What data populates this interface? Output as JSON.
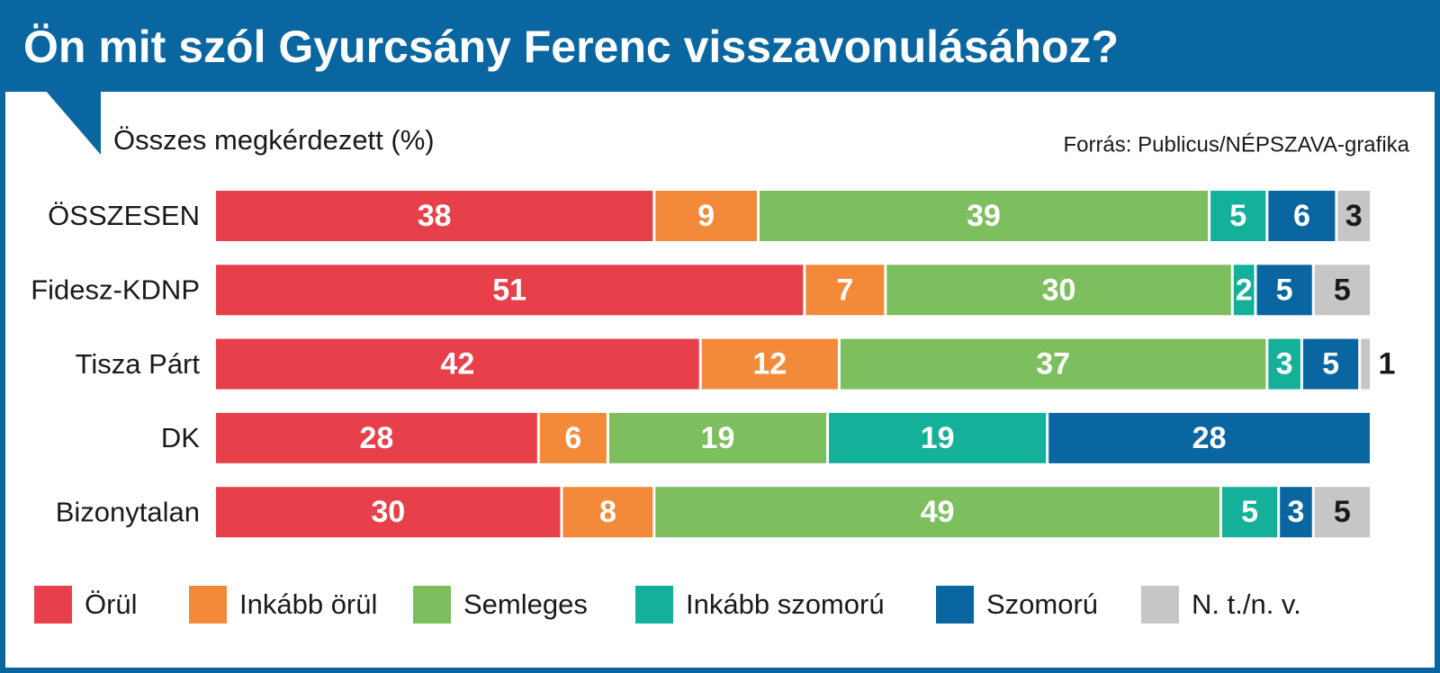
{
  "chart_data": {
    "type": "stacked-bar",
    "title": "Ön mit szól Gyurcsány Ferenc visszavonulásához?",
    "subtitle": "Összes megkérdezett (%)",
    "source": "Forrás: Publicus/NÉPSZAVA-grafika",
    "categories": [
      "ÖSSZESEN",
      "Fidesz-KDNP",
      "Tisza Párt",
      "DK",
      "Bizonytalan"
    ],
    "xlim": [
      0,
      100
    ],
    "series": [
      {
        "name": "Örül",
        "color": "#e8404a",
        "label_color": "#ffffff",
        "values": [
          38,
          51,
          42,
          28,
          30
        ]
      },
      {
        "name": "Inkább örül",
        "color": "#f28a3a",
        "label_color": "#ffffff",
        "values": [
          9,
          7,
          12,
          6,
          8
        ]
      },
      {
        "name": "Semleges",
        "color": "#7dbf5f",
        "label_color": "#ffffff",
        "values": [
          39,
          30,
          37,
          19,
          49
        ]
      },
      {
        "name": "Inkább szomorú",
        "color": "#14b09a",
        "label_color": "#ffffff",
        "values": [
          5,
          2,
          3,
          19,
          5
        ]
      },
      {
        "name": "Szomorú",
        "color": "#0a66a0",
        "label_color": "#ffffff",
        "values": [
          6,
          5,
          5,
          28,
          3
        ]
      },
      {
        "name": "N. t./n. v.",
        "color": "#c6c6c6",
        "label_color": "#1a1a1a",
        "values": [
          3,
          5,
          1,
          null,
          5
        ]
      }
    ]
  }
}
